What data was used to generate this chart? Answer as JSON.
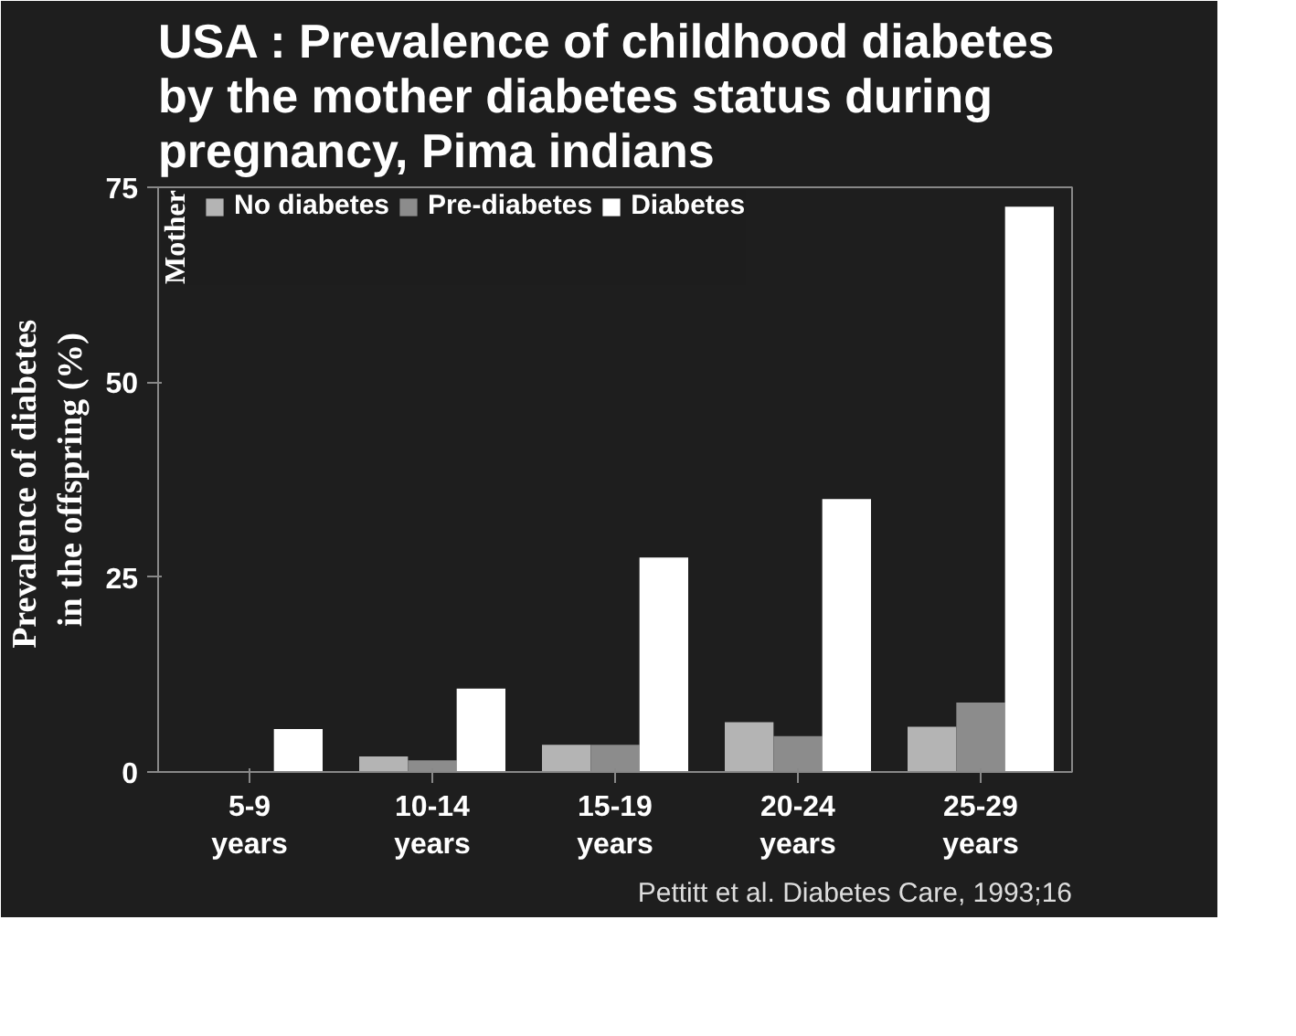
{
  "chart_data": {
    "type": "bar",
    "title": "USA : Prevalence of childhood diabetes\nby the mother diabetes status during\npregnancy, Pima indians",
    "ylabel": "Prevalence  of diabetes\nin the offspring (%)",
    "legend_title": "Mother",
    "categories": [
      "5-9 years",
      "10-14 years",
      "15-19 years",
      "20-24 years",
      "25-29 years"
    ],
    "series": [
      {
        "name": "No diabetes",
        "color": "#b4b4b4",
        "values": [
          0,
          2,
          3.5,
          6.4,
          5.8
        ]
      },
      {
        "name": "Pre-diabetes",
        "color": "#8c8c8c",
        "values": [
          0,
          1.5,
          3.5,
          4.6,
          8.9
        ]
      },
      {
        "name": "Diabetes",
        "color": "#ffffff",
        "values": [
          5.5,
          10.7,
          27.5,
          35,
          72.5
        ]
      }
    ],
    "ylim": [
      0,
      75
    ],
    "yticks": [
      0,
      25,
      50,
      75
    ],
    "grid": false,
    "legend": "top",
    "annotations": [
      "Pettitt et al. Diabetes Care, 1993;16"
    ]
  }
}
